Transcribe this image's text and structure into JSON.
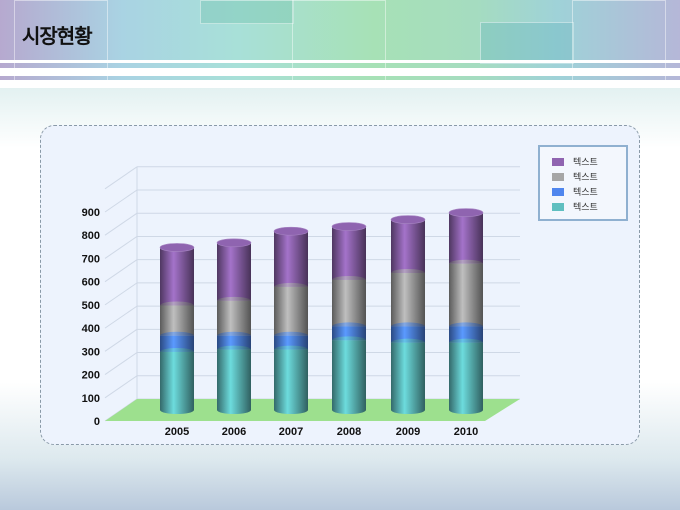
{
  "title": "시장현황",
  "chart_data": {
    "type": "bar",
    "stacked": true,
    "three_d": "cylinder",
    "categories": [
      "2005",
      "2006",
      "2007",
      "2008",
      "2009",
      "2010"
    ],
    "series": [
      {
        "name": "텍스트",
        "color": "#5fbfc0",
        "values": [
          250,
          260,
          260,
          300,
          290,
          290
        ]
      },
      {
        "name": "텍스트",
        "color": "#4f86ee",
        "values": [
          70,
          60,
          60,
          60,
          70,
          70
        ]
      },
      {
        "name": "텍스트",
        "color": "#a6a6a6",
        "values": [
          130,
          150,
          210,
          200,
          230,
          270
        ]
      },
      {
        "name": "텍스트",
        "color": "#8f64b0",
        "values": [
          250,
          250,
          240,
          230,
          230,
          220
        ]
      }
    ],
    "legend_order": [
      3,
      2,
      1,
      0
    ],
    "yticks": [
      "0",
      "100",
      "200",
      "300",
      "400",
      "500",
      "600",
      "700",
      "800",
      "900"
    ],
    "ylim": [
      0,
      1000
    ],
    "grid": true,
    "legend": "top-right",
    "floor_color": "#9de08e"
  }
}
